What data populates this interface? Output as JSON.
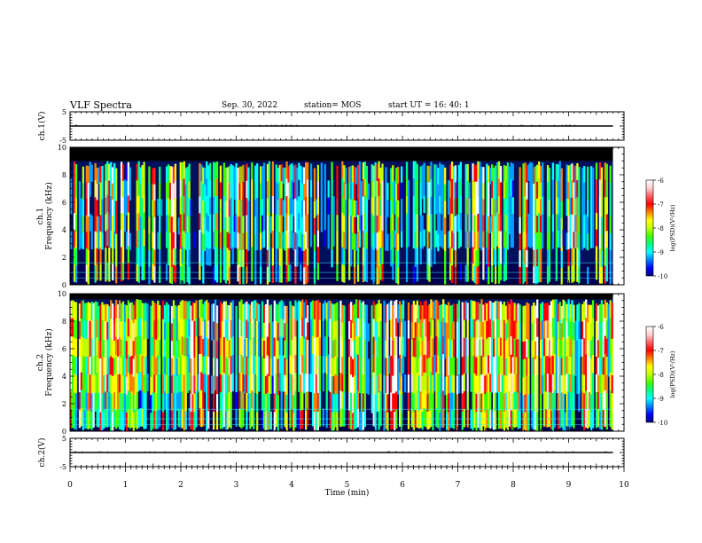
{
  "header": {
    "title": "VLF Spectra",
    "date": "Sep. 30, 2022",
    "station": "station= MOS",
    "start": "start  UT =   16: 40: 1"
  },
  "chart_data": {
    "type": "heatmap",
    "title": "VLF Spectra",
    "xlabel": "Time  (min)",
    "xlim": [
      0,
      10
    ],
    "x_ticks": [
      "0",
      "1",
      "2",
      "3",
      "4",
      "5",
      "6",
      "7",
      "8",
      "9",
      "10"
    ],
    "data_end_min": 9.8,
    "panels": [
      {
        "name": "ch1-voltage",
        "kind": "trace",
        "ylabel": "ch.1(V)",
        "ylim": [
          -5,
          5
        ],
        "y_ticks": [
          "5",
          "-5"
        ],
        "baseline": 0
      },
      {
        "name": "ch1-spectrogram",
        "kind": "spectrogram",
        "ylabel_line1": "ch.1",
        "ylabel_line2": "Frequency  (kHz)",
        "ylim": [
          0,
          10
        ],
        "y_ticks": [
          "0",
          "2",
          "4",
          "6",
          "8",
          "10"
        ],
        "band_top_khz": 9.0,
        "lower_edge_khz": 1.6,
        "activity": 0.45,
        "colorbar": {
          "label": "log(PSD)(V²/Hz)",
          "range": [
            -10,
            -6
          ],
          "ticks": [
            "-6",
            "-7",
            "-8",
            "-9",
            "-10"
          ]
        }
      },
      {
        "name": "ch2-spectrogram",
        "kind": "spectrogram",
        "ylabel_line1": "ch.2",
        "ylabel_line2": "Frequency  (kHz)",
        "ylim": [
          0,
          10
        ],
        "y_ticks": [
          "0",
          "2",
          "4",
          "6",
          "8",
          "10"
        ],
        "band_top_khz": 9.6,
        "lower_edge_khz": 1.7,
        "activity": 0.75,
        "colorbar": {
          "label": "log(PSD)(V²/Hz)",
          "range": [
            -10,
            -6
          ],
          "ticks": [
            "-6",
            "-7",
            "-8",
            "-9",
            "-10"
          ]
        }
      },
      {
        "name": "ch2-voltage",
        "kind": "trace",
        "ylabel": "ch.2(V)",
        "ylim": [
          -5,
          5
        ],
        "y_ticks": [
          "5",
          "-5"
        ],
        "baseline": 0
      }
    ],
    "colormap": [
      "#000060",
      "#0000ff",
      "#00a0ff",
      "#00ffff",
      "#00ff80",
      "#40ff00",
      "#c0ff00",
      "#ffff00",
      "#ff8000",
      "#ff0000",
      "#ff2020",
      "#ffe0e0",
      "#ffffff"
    ]
  }
}
